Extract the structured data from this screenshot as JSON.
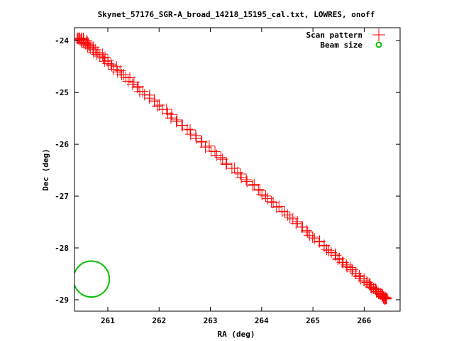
{
  "chart_data": {
    "type": "scatter",
    "title": "Skynet_57176_SGR-A_broad_14218_15195_cal.txt, LOWRES, onoff",
    "xlabel": "RA (deg)",
    "ylabel": "Dec (deg)",
    "xlim": [
      260.35,
      266.7
    ],
    "ylim": [
      -29.22,
      -23.75
    ],
    "xticks": [
      "261",
      "262",
      "263",
      "264",
      "265",
      "266"
    ],
    "yticks": [
      "-24",
      "-25",
      "-26",
      "-27",
      "-28",
      "-29"
    ],
    "legend_position": "top-right",
    "colors": {
      "scan": "#ff0000",
      "beam": "#00c000"
    },
    "series": [
      {
        "name": "Scan pattern",
        "marker": "plus",
        "segments": [
          {
            "from": [
              260.42,
              -23.95
            ],
            "to": [
              266.42,
              -28.98
            ],
            "points": 95
          },
          {
            "from": [
              266.42,
              -28.98
            ],
            "to": [
              260.5,
              -23.95
            ],
            "points": 75
          }
        ]
      },
      {
        "name": "Beam size",
        "marker": "circle",
        "center": [
          260.68,
          -28.6
        ],
        "radius_deg": 0.35
      }
    ]
  }
}
